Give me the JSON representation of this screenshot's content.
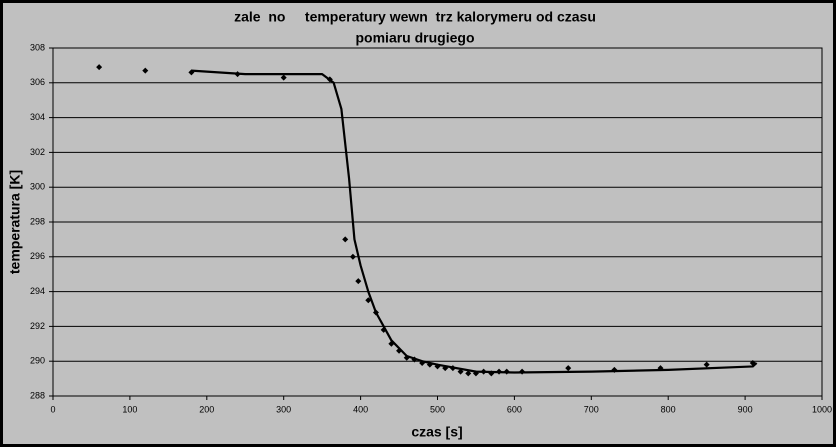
{
  "chart_data": {
    "type": "scatter",
    "title": [
      "zale  no     temperatury wewn  trz kalorymeru od czasu",
      "pomiaru drugiego"
    ],
    "x_label": "czas [s]",
    "y_label": "temperatura [K]",
    "xlim": [
      0,
      1000
    ],
    "ylim": [
      288,
      308
    ],
    "xticks": [
      0,
      100,
      200,
      300,
      400,
      500,
      600,
      700,
      800,
      900,
      1000
    ],
    "yticks": [
      288,
      290,
      292,
      294,
      296,
      298,
      300,
      302,
      304,
      306,
      308
    ],
    "grid": true,
    "series": [
      {
        "mode": "markers",
        "color": "#000000",
        "x": [
          60,
          120,
          180,
          240,
          300,
          360,
          380,
          390,
          397,
          410,
          420,
          430,
          440,
          450,
          460,
          470,
          480,
          490,
          500,
          510,
          520,
          530,
          540,
          550,
          560,
          570,
          580,
          590,
          610,
          670,
          730,
          790,
          850,
          910
        ],
        "values": [
          306.9,
          306.7,
          306.6,
          306.5,
          306.3,
          306.2,
          297.0,
          296.0,
          294.6,
          293.5,
          292.8,
          291.8,
          291.0,
          290.6,
          290.2,
          290.1,
          289.9,
          289.8,
          289.7,
          289.6,
          289.6,
          289.4,
          289.3,
          289.3,
          289.4,
          289.3,
          289.4,
          289.4,
          289.4,
          289.6,
          289.5,
          289.6,
          289.8,
          289.9
        ]
      },
      {
        "mode": "line",
        "color": "#000000",
        "x": [
          180,
          250,
          300,
          350,
          365,
          375,
          385,
          392,
          400,
          410,
          420,
          440,
          460,
          480,
          500,
          550,
          600,
          700,
          800,
          910,
          915
        ],
        "values": [
          306.7,
          306.5,
          306.5,
          306.5,
          306.0,
          304.5,
          300.5,
          297.0,
          295.5,
          294.0,
          292.8,
          291.2,
          290.3,
          290.0,
          289.8,
          289.4,
          289.35,
          289.4,
          289.5,
          289.7,
          289.9
        ]
      }
    ]
  }
}
